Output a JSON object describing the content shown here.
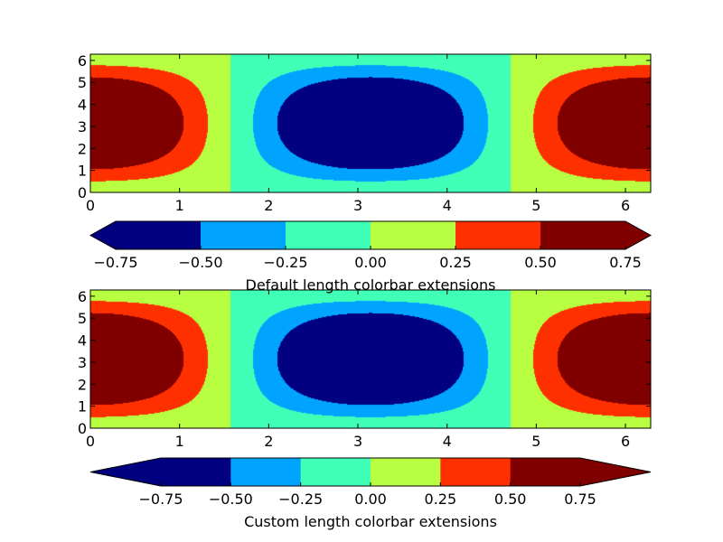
{
  "chart_data": [
    {
      "type": "contourf",
      "z": "cos(x)*sin(y/2)",
      "xlim": [
        0,
        6.283
      ],
      "ylim": [
        0,
        6.283
      ],
      "xticks": [
        "0",
        "1",
        "2",
        "3",
        "4",
        "5",
        "6"
      ],
      "yticks": [
        "0",
        "1",
        "2",
        "3",
        "4",
        "5",
        "6"
      ],
      "levels": [
        -0.75,
        -0.5,
        -0.25,
        0,
        0.25,
        0.5,
        0.75
      ],
      "colors": [
        "#000080",
        "#00a4ff",
        "#40ffb7",
        "#b7ff40",
        "#ff3000",
        "#800000"
      ],
      "colorbar": {
        "orientation": "horizontal",
        "extend": "both",
        "extension_length": "default",
        "ticks": [
          "−0.75",
          "−0.50",
          "−0.25",
          "0.00",
          "0.25",
          "0.50",
          "0.75"
        ],
        "label": "Default length colorbar extensions"
      }
    },
    {
      "type": "contourf",
      "z": "cos(x)*sin(y/2)",
      "xlim": [
        0,
        6.283
      ],
      "ylim": [
        0,
        6.283
      ],
      "xticks": [
        "0",
        "1",
        "2",
        "3",
        "4",
        "5",
        "6"
      ],
      "yticks": [
        "0",
        "1",
        "2",
        "3",
        "4",
        "5",
        "6"
      ],
      "levels": [
        -0.75,
        -0.5,
        -0.25,
        0,
        0.25,
        0.5,
        0.75
      ],
      "colors": [
        "#000080",
        "#00a4ff",
        "#40ffb7",
        "#b7ff40",
        "#ff3000",
        "#800000"
      ],
      "colorbar": {
        "orientation": "horizontal",
        "extend": "both",
        "extension_length": "custom",
        "ticks": [
          "−0.75",
          "−0.50",
          "−0.25",
          "0.00",
          "0.25",
          "0.50",
          "0.75"
        ],
        "label": "Custom length colorbar extensions"
      }
    }
  ]
}
